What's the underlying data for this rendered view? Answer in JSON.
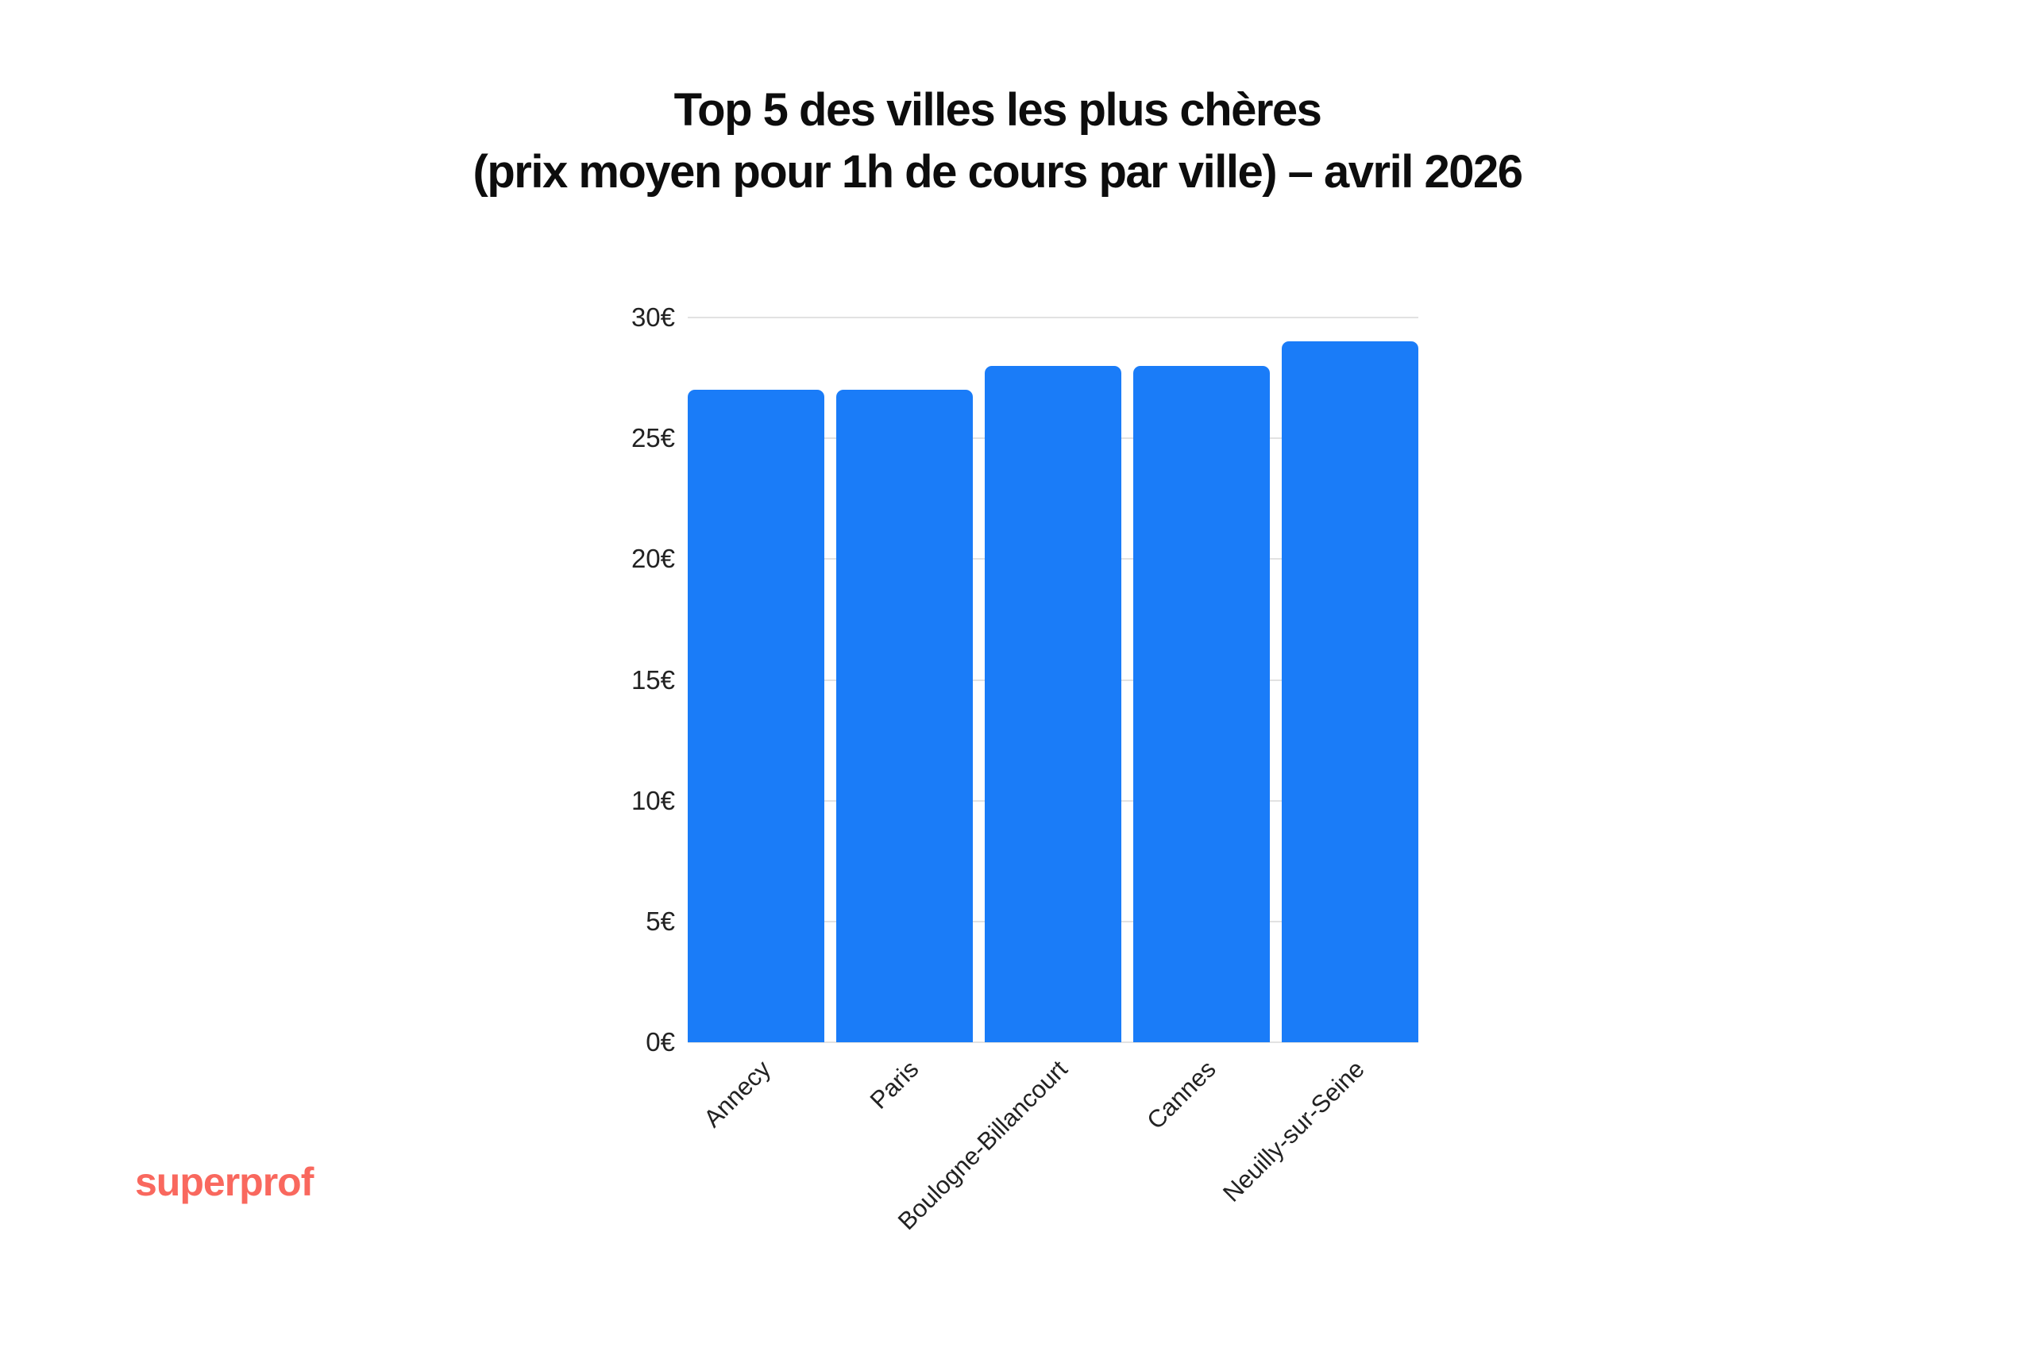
{
  "header": {
    "title": "Top 5 des villes les plus chères",
    "subtitle": "(prix moyen pour 1h de cours par ville) – avril 2026"
  },
  "branding": {
    "logo_text": "superprof",
    "logo_color": "#F9685E"
  },
  "chart_data": {
    "type": "bar",
    "title": "Top 5 des villes les plus chères",
    "subtitle": "(prix moyen pour 1h de cours par ville) – avril 2026",
    "categories": [
      "Annecy",
      "Paris",
      "Boulogne-Billancourt",
      "Cannes",
      "Neuilly-sur-Seine"
    ],
    "values": [
      27,
      27,
      28,
      28,
      29
    ],
    "unit": "€",
    "xlabel": "",
    "ylabel": "",
    "ylim": [
      0,
      30
    ],
    "yticks": [
      0,
      5,
      10,
      15,
      20,
      25,
      30
    ],
    "ytick_labels": [
      "0€",
      "5€",
      "10€",
      "15€",
      "20€",
      "25€",
      "30€"
    ],
    "grid": true,
    "legend": "none",
    "bar_color": "#1A7CF8",
    "grid_color": "#E2E2E2",
    "axis_text_color": "#222222",
    "background_color": "#FFFFFF"
  }
}
